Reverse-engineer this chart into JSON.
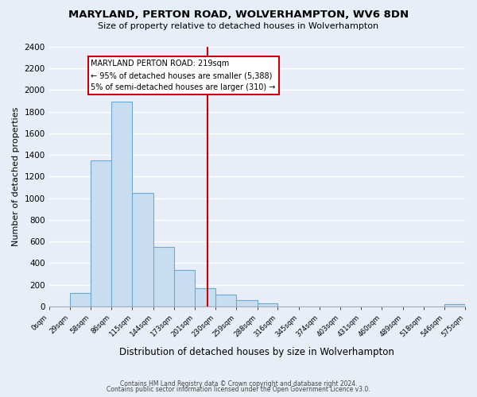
{
  "title": "MARYLAND, PERTON ROAD, WOLVERHAMPTON, WV6 8DN",
  "subtitle": "Size of property relative to detached houses in Wolverhampton",
  "xlabel": "Distribution of detached houses by size in Wolverhampton",
  "ylabel": "Number of detached properties",
  "bar_color": "#c8ddf0",
  "bar_edge_color": "#6aaad4",
  "background_color": "#e8eef8",
  "grid_color": "#ffffff",
  "bin_edges": [
    0,
    29,
    58,
    86,
    115,
    144,
    173,
    201,
    230,
    259,
    288,
    316,
    345,
    374,
    403,
    431,
    460,
    489,
    518,
    546,
    575
  ],
  "bar_heights": [
    0,
    125,
    1350,
    1890,
    1050,
    550,
    340,
    165,
    110,
    60,
    25,
    0,
    0,
    0,
    0,
    0,
    0,
    0,
    0,
    20
  ],
  "tick_labels": [
    "0sqm",
    "29sqm",
    "58sqm",
    "86sqm",
    "115sqm",
    "144sqm",
    "173sqm",
    "201sqm",
    "230sqm",
    "259sqm",
    "288sqm",
    "316sqm",
    "345sqm",
    "374sqm",
    "403sqm",
    "431sqm",
    "460sqm",
    "489sqm",
    "518sqm",
    "546sqm",
    "575sqm"
  ],
  "vline_x": 219,
  "vline_color": "#cc0000",
  "annotation_title": "MARYLAND PERTON ROAD: 219sqm",
  "annotation_line1": "← 95% of detached houses are smaller (5,388)",
  "annotation_line2": "5% of semi-detached houses are larger (310) →",
  "annotation_box_color": "#ffffff",
  "annotation_box_edge": "#cc0000",
  "ylim": [
    0,
    2400
  ],
  "yticks": [
    0,
    200,
    400,
    600,
    800,
    1000,
    1200,
    1400,
    1600,
    1800,
    2000,
    2200,
    2400
  ],
  "footer_line1": "Contains HM Land Registry data © Crown copyright and database right 2024.",
  "footer_line2": "Contains public sector information licensed under the Open Government Licence v3.0."
}
